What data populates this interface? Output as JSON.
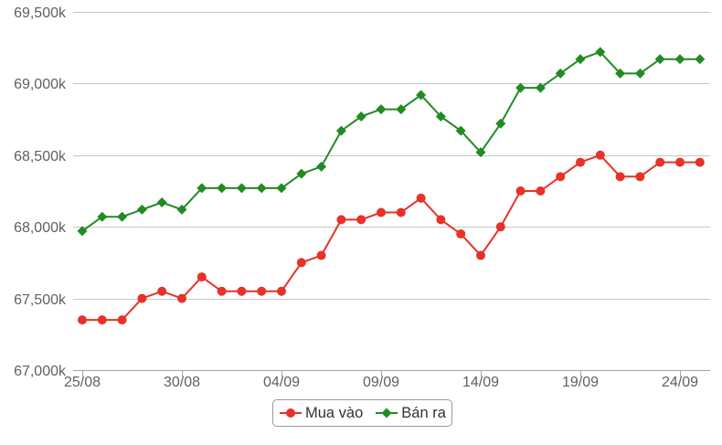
{
  "chart_data": {
    "type": "line",
    "x": [
      "25/08",
      "26/08",
      "27/08",
      "28/08",
      "29/08",
      "30/08",
      "31/08",
      "01/09",
      "02/09",
      "03/09",
      "04/09",
      "05/09",
      "06/09",
      "07/09",
      "08/09",
      "09/09",
      "10/09",
      "11/09",
      "12/09",
      "13/09",
      "14/09",
      "15/09",
      "16/09",
      "17/09",
      "18/09",
      "19/09",
      "20/09",
      "21/09",
      "22/09",
      "23/09",
      "24/09",
      "25/09"
    ],
    "x_ticks": [
      "25/08",
      "30/08",
      "04/09",
      "09/09",
      "14/09",
      "19/09",
      "24/09"
    ],
    "y_ticks": [
      {
        "value": 67000,
        "label": "67,000k"
      },
      {
        "value": 67500,
        "label": "67,500k"
      },
      {
        "value": 68000,
        "label": "68,000k"
      },
      {
        "value": 68500,
        "label": "68,500k"
      },
      {
        "value": 69000,
        "label": "69,000k"
      },
      {
        "value": 69500,
        "label": "69,500k"
      }
    ],
    "ylim": [
      67000,
      69500
    ],
    "grid": true,
    "legend": "bottom-center",
    "series": [
      {
        "name": "Mua vào",
        "color": "#e63228",
        "marker": "circle",
        "values": [
          67350,
          67350,
          67350,
          67500,
          67550,
          67500,
          67650,
          67550,
          67550,
          67550,
          67550,
          67750,
          67800,
          68050,
          68050,
          68100,
          68100,
          68200,
          68050,
          67950,
          67800,
          68000,
          68250,
          68250,
          68350,
          68450,
          68500,
          68350,
          68350,
          68450,
          68450,
          68450
        ]
      },
      {
        "name": "Bán ra",
        "color": "#228b22",
        "marker": "diamond",
        "values": [
          67970,
          68070,
          68070,
          68120,
          68170,
          68120,
          68270,
          68270,
          68270,
          68270,
          68270,
          68370,
          68420,
          68670,
          68770,
          68820,
          68820,
          68920,
          68770,
          68670,
          68520,
          68720,
          68970,
          68970,
          69070,
          69170,
          69220,
          69070,
          69070,
          69170,
          69170,
          69170
        ]
      }
    ]
  }
}
